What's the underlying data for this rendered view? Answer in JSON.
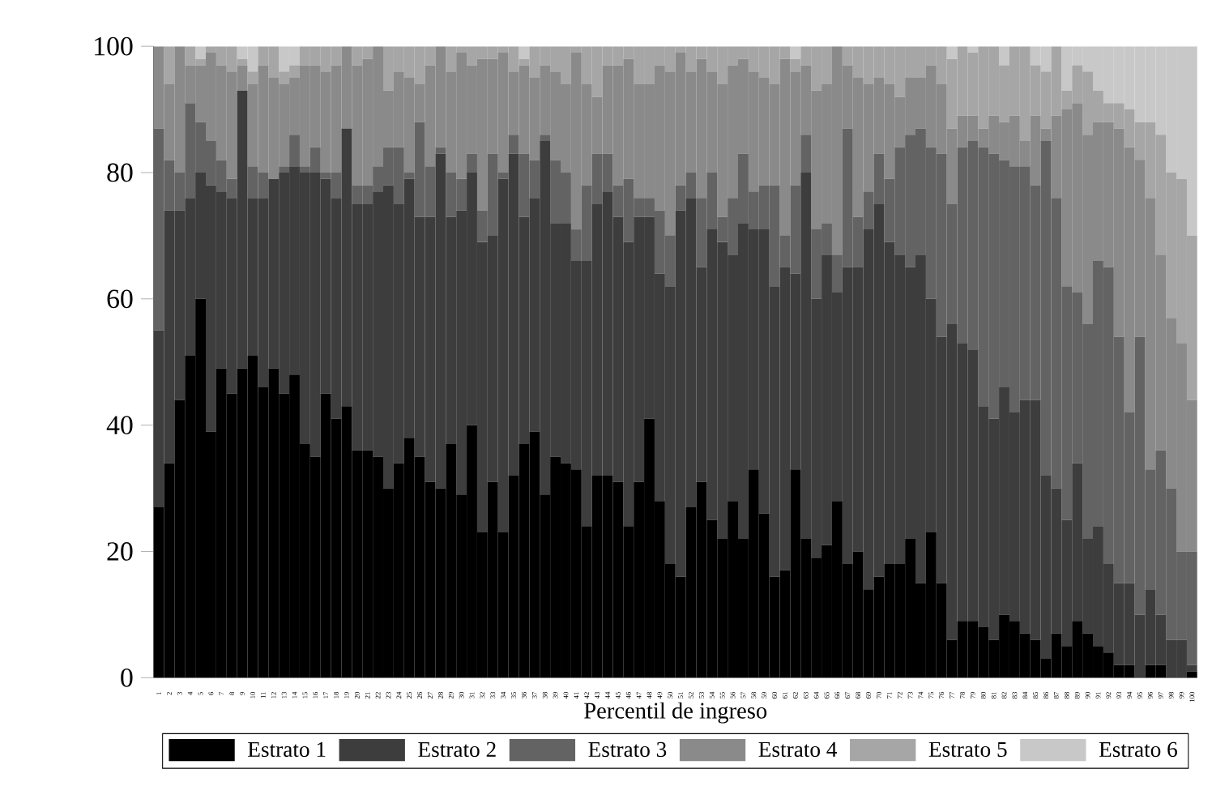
{
  "chart_data": {
    "type": "bar",
    "stacked": true,
    "xlabel": "Percentil de ingreso",
    "ylim": [
      0,
      100
    ],
    "yticks": [
      0,
      20,
      40,
      60,
      80,
      100
    ],
    "legend": "bottom",
    "categories": [
      "1",
      "2",
      "3",
      "4",
      "5",
      "6",
      "7",
      "8",
      "9",
      "10",
      "11",
      "12",
      "13",
      "14",
      "15",
      "16",
      "17",
      "18",
      "19",
      "20",
      "21",
      "22",
      "23",
      "24",
      "25",
      "26",
      "27",
      "28",
      "29",
      "30",
      "31",
      "32",
      "33",
      "34",
      "35",
      "36",
      "37",
      "38",
      "39",
      "40",
      "41",
      "42",
      "43",
      "44",
      "45",
      "46",
      "47",
      "48",
      "49",
      "50",
      "51",
      "52",
      "53",
      "54",
      "55",
      "56",
      "57",
      "58",
      "59",
      "60",
      "61",
      "62",
      "63",
      "64",
      "65",
      "66",
      "67",
      "68",
      "69",
      "70",
      "71",
      "72",
      "73",
      "74",
      "75",
      "76",
      "77",
      "78",
      "79",
      "80",
      "81",
      "82",
      "83",
      "84",
      "85",
      "86",
      "87",
      "88",
      "89",
      "90",
      "91",
      "92",
      "93",
      "94",
      "95",
      "96",
      "97",
      "98",
      "99",
      "100"
    ],
    "series": [
      {
        "name": "Estrato 1",
        "color": "#000000",
        "values": [
          27,
          34,
          44,
          51,
          60,
          39,
          49,
          45,
          49,
          51,
          46,
          49,
          45,
          48,
          37,
          35,
          45,
          41,
          43,
          36,
          36,
          35,
          30,
          34,
          38,
          35,
          31,
          30,
          37,
          29,
          40,
          23,
          31,
          23,
          32,
          37,
          39,
          29,
          35,
          34,
          33,
          24,
          32,
          32,
          31,
          24,
          31,
          41,
          28,
          18,
          16,
          27,
          31,
          25,
          22,
          28,
          22,
          33,
          26,
          16,
          17,
          33,
          22,
          19,
          21,
          28,
          18,
          20,
          14,
          16,
          18,
          18,
          22,
          15,
          23,
          15,
          6,
          9,
          9,
          8,
          6,
          10,
          9,
          7,
          6,
          3,
          7,
          5,
          9,
          7,
          5,
          4,
          2,
          2,
          0,
          2,
          2,
          0,
          0,
          1
        ]
      },
      {
        "name": "Estrato 2",
        "color": "#3d3d3d",
        "values": [
          28,
          40,
          30,
          25,
          20,
          39,
          28,
          31,
          44,
          25,
          30,
          30,
          35,
          33,
          43,
          45,
          34,
          35,
          44,
          39,
          39,
          42,
          48,
          41,
          41,
          38,
          42,
          53,
          36,
          45,
          40,
          46,
          39,
          56,
          51,
          36,
          37,
          56,
          37,
          38,
          33,
          42,
          43,
          45,
          42,
          45,
          42,
          32,
          36,
          44,
          58,
          49,
          34,
          46,
          47,
          39,
          50,
          38,
          45,
          46,
          48,
          31,
          58,
          41,
          46,
          33,
          47,
          45,
          57,
          59,
          51,
          49,
          43,
          52,
          37,
          39,
          50,
          44,
          43,
          35,
          35,
          36,
          33,
          37,
          38,
          29,
          23,
          20,
          25,
          15,
          19,
          14,
          13,
          13,
          10,
          12,
          8,
          6,
          6,
          1
        ]
      },
      {
        "name": "Estrato 3",
        "color": "#636363",
        "values": [
          32,
          8,
          6,
          15,
          8,
          7,
          5,
          3,
          0,
          5,
          4,
          0,
          1,
          5,
          1,
          4,
          1,
          4,
          0,
          3,
          3,
          4,
          6,
          9,
          1,
          15,
          8,
          1,
          7,
          5,
          3,
          5,
          13,
          1,
          3,
          10,
          6,
          1,
          10,
          8,
          5,
          12,
          8,
          6,
          5,
          10,
          3,
          3,
          10,
          8,
          4,
          4,
          11,
          9,
          4,
          9,
          11,
          6,
          7,
          16,
          5,
          14,
          6,
          11,
          5,
          6,
          22,
          8,
          6,
          8,
          10,
          17,
          21,
          20,
          24,
          29,
          19,
          31,
          33,
          41,
          42,
          36,
          39,
          37,
          34,
          53,
          46,
          37,
          27,
          34,
          42,
          47,
          39,
          27,
          44,
          19,
          26,
          24,
          14,
          18
        ]
      },
      {
        "name": "Estrato 4",
        "color": "#8a8a8a",
        "values": [
          13,
          12,
          20,
          6,
          9,
          14,
          15,
          17,
          4,
          13,
          17,
          16,
          13,
          9,
          16,
          13,
          16,
          17,
          13,
          19,
          20,
          19,
          9,
          12,
          15,
          6,
          16,
          16,
          16,
          20,
          14,
          24,
          15,
          19,
          10,
          14,
          13,
          11,
          14,
          14,
          28,
          16,
          9,
          14,
          19,
          19,
          18,
          18,
          23,
          26,
          21,
          16,
          22,
          16,
          21,
          21,
          15,
          19,
          17,
          16,
          28,
          18,
          11,
          22,
          22,
          33,
          10,
          22,
          17,
          12,
          15,
          8,
          9,
          8,
          13,
          11,
          12,
          5,
          4,
          3,
          6,
          6,
          8,
          4,
          11,
          2,
          13,
          28,
          30,
          30,
          22,
          23,
          33,
          42,
          28,
          43,
          31,
          27,
          33,
          24
        ]
      },
      {
        "name": "Estrato 5",
        "color": "#a6a6a6",
        "values": [
          0,
          6,
          0,
          3,
          1,
          1,
          3,
          4,
          1,
          2,
          3,
          5,
          2,
          2,
          3,
          3,
          4,
          3,
          0,
          3,
          2,
          0,
          7,
          4,
          5,
          6,
          3,
          0,
          4,
          1,
          3,
          2,
          2,
          1,
          4,
          1,
          5,
          3,
          4,
          6,
          1,
          6,
          8,
          3,
          3,
          2,
          6,
          6,
          3,
          4,
          1,
          4,
          2,
          4,
          6,
          3,
          2,
          4,
          5,
          6,
          2,
          2,
          3,
          7,
          6,
          0,
          3,
          5,
          6,
          5,
          6,
          8,
          5,
          5,
          3,
          6,
          11,
          11,
          10,
          13,
          11,
          9,
          11,
          15,
          8,
          9,
          11,
          3,
          6,
          10,
          5,
          3,
          4,
          6,
          6,
          12,
          19,
          23,
          26,
          26
        ]
      },
      {
        "name": "Estrato 6",
        "color": "#c8c8c8",
        "values": [
          0,
          0,
          0,
          0,
          2,
          0,
          0,
          0,
          2,
          4,
          0,
          0,
          4,
          3,
          0,
          0,
          0,
          0,
          0,
          0,
          0,
          0,
          0,
          0,
          0,
          0,
          0,
          0,
          0,
          0,
          0,
          0,
          0,
          0,
          0,
          2,
          0,
          0,
          0,
          0,
          0,
          0,
          0,
          0,
          0,
          0,
          0,
          0,
          0,
          0,
          0,
          0,
          0,
          0,
          0,
          0,
          0,
          0,
          0,
          0,
          0,
          2,
          0,
          0,
          0,
          0,
          0,
          0,
          0,
          0,
          0,
          0,
          0,
          0,
          0,
          0,
          2,
          0,
          1,
          0,
          0,
          3,
          0,
          0,
          3,
          4,
          0,
          7,
          3,
          4,
          7,
          9,
          9,
          10,
          12,
          12,
          14,
          20,
          21,
          30
        ]
      }
    ]
  }
}
